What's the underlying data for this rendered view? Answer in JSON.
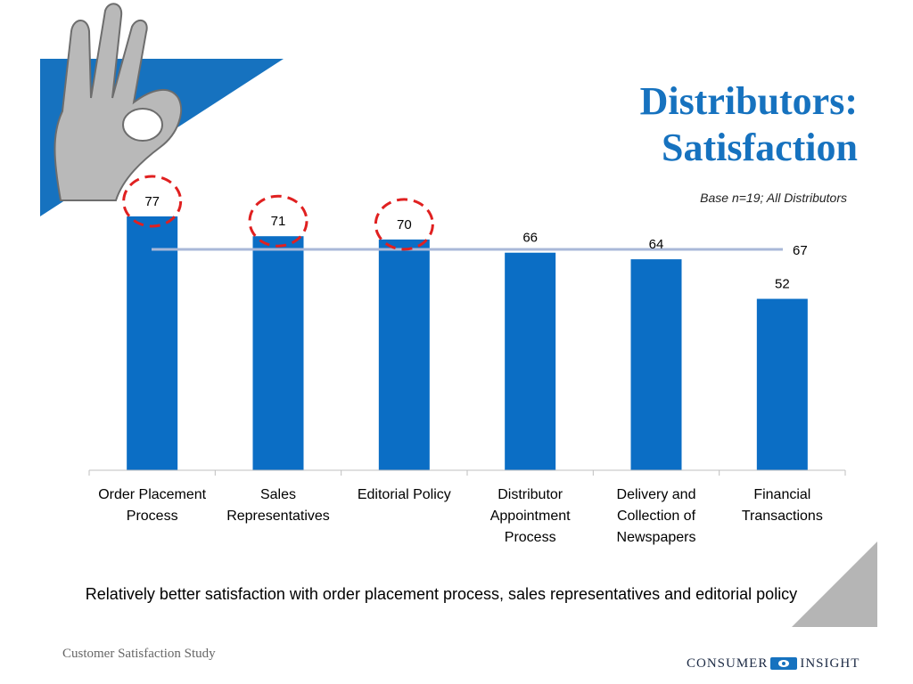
{
  "title_lines": [
    "Distributors:",
    "Satisfaction"
  ],
  "base_note": "Base n=19; All Distributors",
  "conclusion": "Relatively better satisfaction with order placement process, sales representatives and editorial policy",
  "footer": {
    "study_name": "Customer Satisfaction Study",
    "logo_left": "CONSUMER",
    "logo_right": "INSIGHT"
  },
  "colors": {
    "bar": "#0b6ec5",
    "average_line": "#a9b8d8",
    "highlight_circle": "#e02020",
    "title": "#1672bf"
  },
  "chart_data": {
    "type": "bar",
    "title": "",
    "xlabel": "",
    "ylabel": "",
    "categories": [
      [
        "Order Placement",
        "Process"
      ],
      [
        "Sales",
        "Representatives"
      ],
      [
        "Editorial Policy"
      ],
      [
        "Distributor",
        "Appointment",
        "Process"
      ],
      [
        "Delivery and",
        "Collection of",
        "Newspapers"
      ],
      [
        "Financial",
        "Transactions"
      ]
    ],
    "values": [
      77,
      71,
      70,
      66,
      64,
      52
    ],
    "highlighted": [
      true,
      true,
      true,
      false,
      false,
      false
    ],
    "average": 67,
    "ylim": [
      0,
      80
    ],
    "grid": false,
    "legend": "none"
  }
}
